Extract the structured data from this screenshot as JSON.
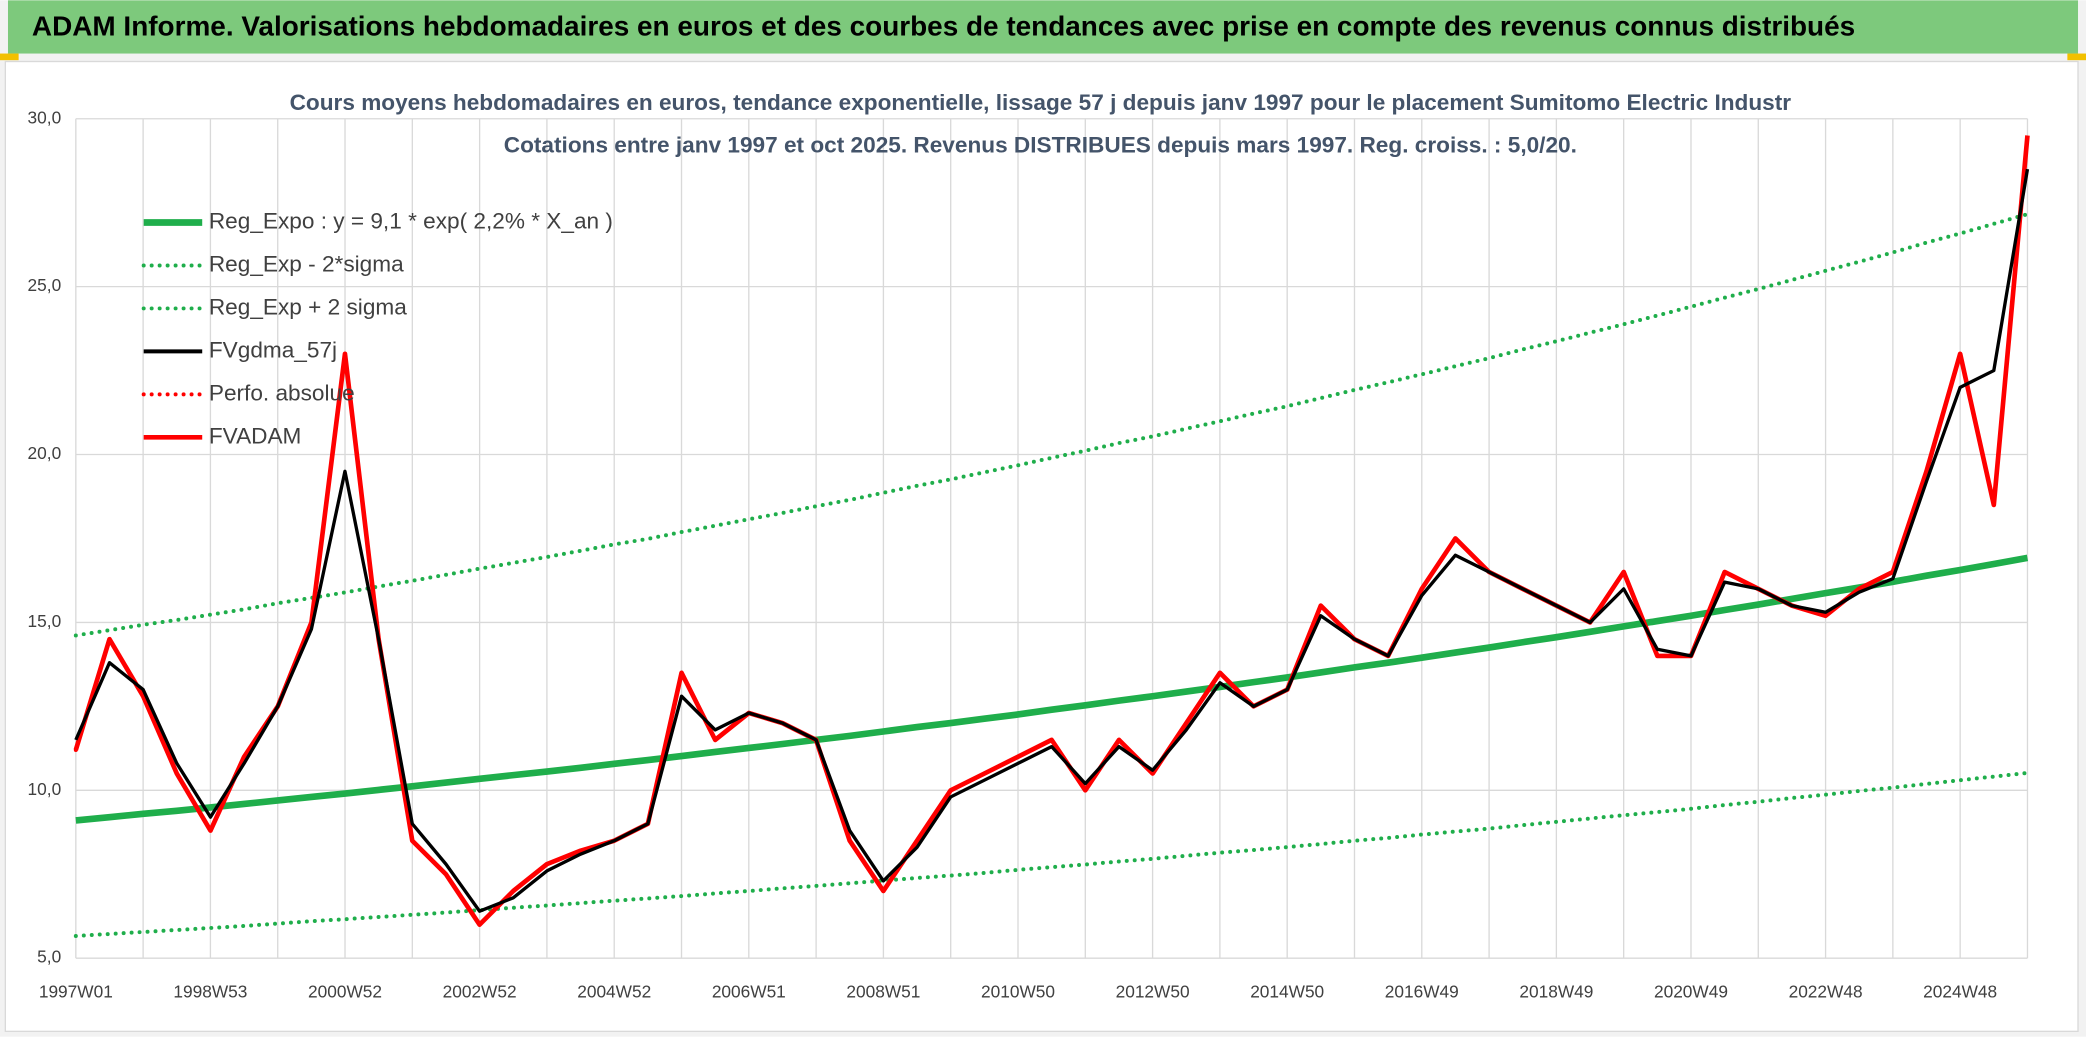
{
  "header": {
    "title": "ADAM Informe. Valorisations hebdomadaires en euros et des courbes de tendances avec prise en compte des revenus connus distribués"
  },
  "chart_data": {
    "type": "line",
    "title": "Cours moyens hebdomadaires en euros, tendance exponentielle, lissage 57 j depuis janv 1997 pour le placement Sumitomo Electric Industr",
    "subtitle": "Cotations entre janv 1997 et oct 2025. Revenus DISTRIBUES depuis mars 1997. Reg. croiss. : 5,0/20.",
    "categories": [
      "1997W01",
      null,
      null,
      null,
      "1998W53",
      null,
      null,
      null,
      "2000W52",
      null,
      null,
      null,
      "2002W52",
      null,
      null,
      null,
      "2004W52",
      null,
      null,
      null,
      "2006W51",
      null,
      null,
      null,
      "2008W51",
      null,
      null,
      null,
      "2010W50",
      null,
      null,
      null,
      "2012W50",
      null,
      null,
      null,
      "2014W50",
      null,
      null,
      null,
      "2016W49",
      null,
      null,
      null,
      "2018W49",
      null,
      null,
      null,
      "2020W49",
      null,
      null,
      null,
      "2022W48",
      null,
      null,
      null,
      "2024W48",
      null,
      null
    ],
    "ylim": [
      5,
      30
    ],
    "yticks": [
      {
        "value": 5,
        "label": "5,0"
      },
      {
        "value": 10,
        "label": "10,0"
      },
      {
        "value": 15,
        "label": "15,0"
      },
      {
        "value": 20,
        "label": "20,0"
      },
      {
        "value": 25,
        "label": "25,0"
      },
      {
        "value": 30,
        "label": "30,0"
      }
    ],
    "grid": true,
    "legend": "upper left",
    "series": [
      {
        "name": "Reg_Expo : y = 9,1 * exp( 2,2% *  X_an )",
        "color": "#1fae4b",
        "style": "solid",
        "values": [
          9.1,
          9.2,
          9.3,
          9.39,
          9.49,
          9.59,
          9.7,
          9.8,
          9.9,
          10.01,
          10.12,
          10.23,
          10.34,
          10.45,
          10.56,
          10.67,
          10.79,
          10.9,
          11.02,
          11.14,
          11.26,
          11.38,
          11.5,
          11.62,
          11.75,
          11.88,
          12.0,
          12.13,
          12.26,
          12.4,
          12.53,
          12.67,
          12.8,
          12.94,
          13.08,
          13.22,
          13.36,
          13.51,
          13.66,
          13.8,
          13.95,
          14.1,
          14.25,
          14.41,
          14.56,
          14.72,
          14.88,
          15.04,
          15.2,
          15.37,
          15.53,
          15.7,
          15.87,
          16.04,
          16.21,
          16.39,
          16.56,
          16.74,
          16.92
        ]
      },
      {
        "name": "Reg_Exp - 2*sigma",
        "color": "#1fae4b",
        "style": "dotted",
        "values": [
          5.66,
          5.72,
          5.78,
          5.84,
          5.9,
          5.96,
          6.03,
          6.1,
          6.16,
          6.23,
          6.29,
          6.36,
          6.43,
          6.5,
          6.57,
          6.64,
          6.71,
          6.78,
          6.85,
          6.93,
          7.0,
          7.08,
          7.15,
          7.23,
          7.31,
          7.39,
          7.46,
          7.54,
          7.63,
          7.71,
          7.79,
          7.88,
          7.96,
          8.05,
          8.14,
          8.22,
          8.31,
          8.4,
          8.5,
          8.58,
          8.68,
          8.77,
          8.86,
          8.96,
          9.06,
          9.16,
          9.26,
          9.35,
          9.45,
          9.56,
          9.66,
          9.77,
          9.87,
          9.98,
          10.08,
          10.19,
          10.3,
          10.41,
          10.52
        ]
      },
      {
        "name": "Reg_Exp + 2 sigma",
        "color": "#1fae4b",
        "style": "dotted",
        "values": [
          14.61,
          14.77,
          14.93,
          15.07,
          15.23,
          15.39,
          15.57,
          15.73,
          15.89,
          16.07,
          16.24,
          16.42,
          16.6,
          16.77,
          16.95,
          17.13,
          17.32,
          17.49,
          17.69,
          17.88,
          18.07,
          18.26,
          18.46,
          18.65,
          18.86,
          19.07,
          19.26,
          19.47,
          19.68,
          19.9,
          20.11,
          20.34,
          20.54,
          20.77,
          20.99,
          21.22,
          21.44,
          21.68,
          21.92,
          22.15,
          22.39,
          22.63,
          22.87,
          23.13,
          23.37,
          23.63,
          23.88,
          24.14,
          24.4,
          24.67,
          24.93,
          25.2,
          25.47,
          25.74,
          26.02,
          26.31,
          26.58,
          26.87,
          27.16
        ]
      },
      {
        "name": "FVgdma_57j",
        "color": "#000000",
        "style": "solid",
        "values": [
          11.5,
          13.8,
          13.0,
          10.8,
          9.2,
          10.8,
          12.5,
          14.8,
          19.5,
          14.5,
          9.0,
          7.8,
          6.4,
          6.8,
          7.6,
          8.1,
          8.5,
          9.0,
          12.8,
          11.8,
          12.3,
          12.0,
          11.5,
          8.8,
          7.3,
          8.3,
          9.8,
          10.3,
          10.8,
          11.3,
          10.2,
          11.3,
          10.6,
          11.8,
          13.2,
          12.5,
          13.0,
          15.2,
          14.5,
          14.0,
          15.8,
          17.0,
          16.5,
          16.0,
          15.5,
          15.0,
          16.0,
          14.2,
          14.0,
          16.2,
          16.0,
          15.5,
          15.3,
          15.9,
          16.3,
          19.2,
          22.0,
          22.5,
          28.5
        ]
      },
      {
        "name": "Perfo. absolue",
        "color": "#ff0000",
        "style": "dotted",
        "values": [
          11.2,
          14.5,
          12.8,
          10.5,
          8.8,
          11.0,
          12.5,
          15.0,
          23.0,
          14.5,
          8.5,
          7.5,
          6.0,
          7.0,
          7.8,
          8.2,
          8.5,
          9.0,
          13.5,
          11.5,
          12.3,
          12.0,
          11.5,
          8.5,
          7.0,
          8.5,
          10.0,
          10.5,
          11.0,
          11.5,
          10.0,
          11.5,
          10.5,
          12.0,
          13.5,
          12.5,
          13.0,
          15.5,
          14.5,
          14.0,
          16.0,
          17.5,
          16.5,
          16.0,
          15.5,
          15.0,
          16.5,
          14.0,
          14.0,
          16.5,
          16.0,
          15.5,
          15.2,
          16.0,
          16.5,
          19.5,
          23.0,
          18.5,
          29.5
        ]
      },
      {
        "name": "FVADAM",
        "color": "#ff0000",
        "style": "solid",
        "values": [
          11.2,
          14.5,
          12.8,
          10.5,
          8.8,
          11.0,
          12.5,
          15.0,
          23.0,
          14.5,
          8.5,
          7.5,
          6.0,
          7.0,
          7.8,
          8.2,
          8.5,
          9.0,
          13.5,
          11.5,
          12.3,
          12.0,
          11.5,
          8.5,
          7.0,
          8.5,
          10.0,
          10.5,
          11.0,
          11.5,
          10.0,
          11.5,
          10.5,
          12.0,
          13.5,
          12.5,
          13.0,
          15.5,
          14.5,
          14.0,
          16.0,
          17.5,
          16.5,
          16.0,
          15.5,
          15.0,
          16.5,
          14.0,
          14.0,
          16.5,
          16.0,
          15.5,
          15.2,
          16.0,
          16.5,
          19.5,
          23.0,
          18.5,
          29.5
        ]
      }
    ]
  }
}
